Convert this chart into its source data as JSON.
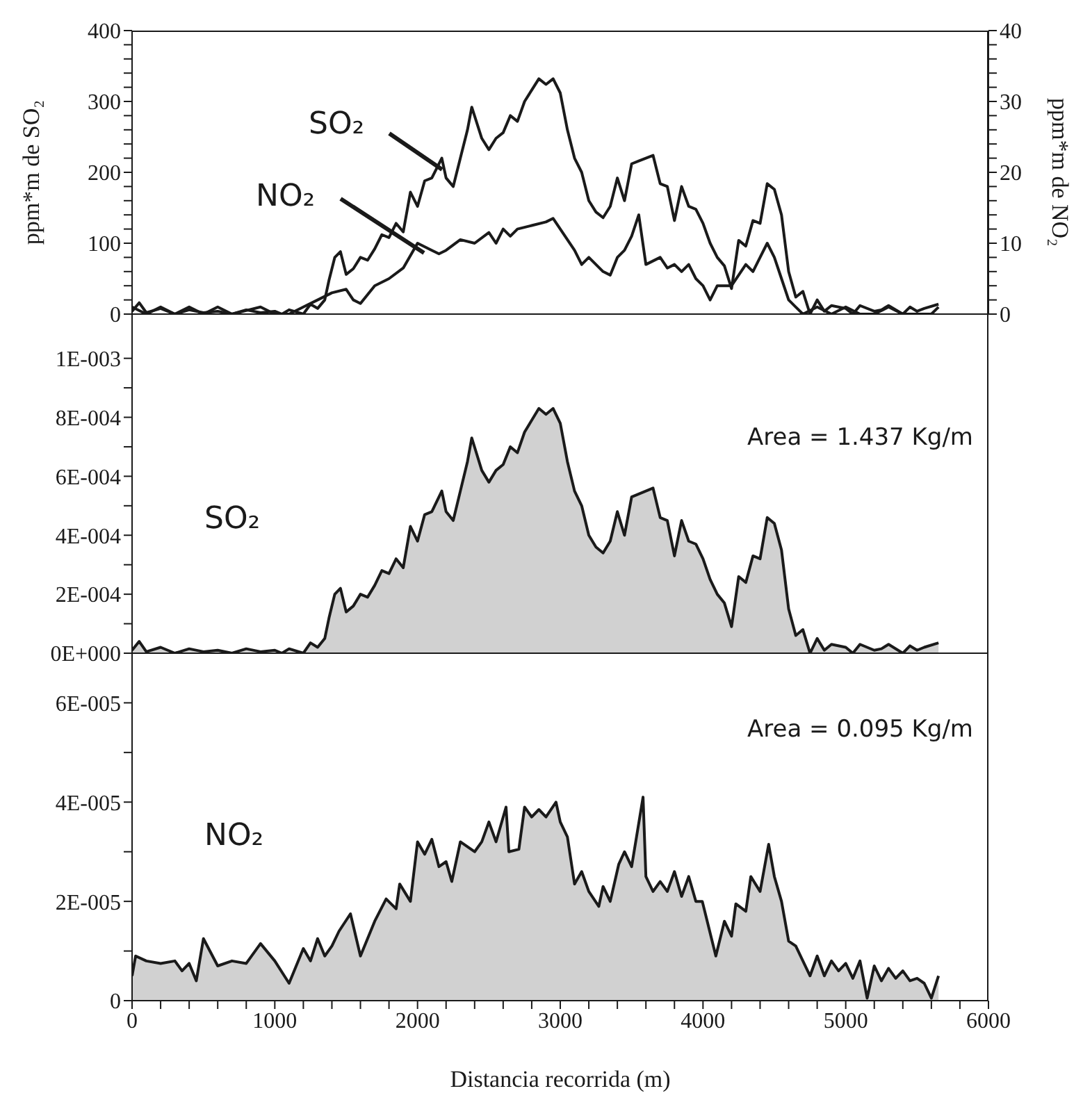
{
  "chart_data": [
    {
      "type": "line",
      "ylabel": "ppm*m de SO₂",
      "y2label": "ppm*m de NO₂",
      "xlim": [
        0,
        6000
      ],
      "ylim": [
        0,
        400
      ],
      "y2lim": [
        0,
        40
      ],
      "tick_labels": "y",
      "yticks": [
        0,
        {
          "value": 20,
          "label": null
        },
        {
          "value": 40,
          "label": null
        },
        {
          "value": 60,
          "label": null
        },
        {
          "value": 80,
          "label": null
        },
        100,
        {
          "value": 120,
          "label": null
        },
        {
          "value": 140,
          "label": null
        },
        {
          "value": 160,
          "label": null
        },
        {
          "value": 180,
          "label": null
        },
        200,
        {
          "value": 220,
          "label": null
        },
        {
          "value": 240,
          "label": null
        },
        {
          "value": 260,
          "label": null
        },
        {
          "value": 280,
          "label": null
        },
        300,
        {
          "value": 320,
          "label": null
        },
        {
          "value": 340,
          "label": null
        },
        {
          "value": 360,
          "label": null
        },
        {
          "value": 380,
          "label": null
        },
        400
      ],
      "y2ticks": [
        0,
        {
          "value": 2,
          "label": null
        },
        {
          "value": 4,
          "label": null
        },
        {
          "value": 6,
          "label": null
        },
        {
          "value": 8,
          "label": null
        },
        10,
        {
          "value": 12,
          "label": null
        },
        {
          "value": 14,
          "label": null
        },
        {
          "value": 16,
          "label": null
        },
        {
          "value": 18,
          "label": null
        },
        20,
        {
          "value": 22,
          "label": null
        },
        {
          "value": 24,
          "label": null
        },
        {
          "value": 26,
          "label": null
        },
        {
          "value": 28,
          "label": null
        },
        30,
        {
          "value": 32,
          "label": null
        },
        {
          "value": 34,
          "label": null
        },
        {
          "value": 36,
          "label": null
        },
        {
          "value": 38,
          "label": null
        },
        40
      ],
      "series": [
        {
          "name": "SO₂",
          "color": "#1a1a1a",
          "x": [
            0,
            50,
            100,
            200,
            300,
            400,
            500,
            600,
            700,
            800,
            900,
            1000,
            1050,
            1100,
            1200,
            1250,
            1300,
            1350,
            1380,
            1420,
            1460,
            1500,
            1550,
            1600,
            1650,
            1700,
            1750,
            1800,
            1850,
            1900,
            1950,
            2000,
            2050,
            2100,
            2170,
            2200,
            2250,
            2300,
            2350,
            2380,
            2450,
            2500,
            2550,
            2600,
            2650,
            2700,
            2750,
            2800,
            2850,
            2900,
            2950,
            3000,
            3050,
            3100,
            3150,
            3200,
            3250,
            3300,
            3350,
            3400,
            3450,
            3500,
            3550,
            3600,
            3650,
            3700,
            3750,
            3800,
            3850,
            3900,
            3950,
            4000,
            4050,
            4100,
            4150,
            4200,
            4250,
            4300,
            4350,
            4400,
            4450,
            4500,
            4550,
            4600,
            4650,
            4700,
            4750,
            4800,
            4850,
            4900,
            5000,
            5050,
            5100,
            5200,
            5250,
            5300,
            5400,
            5450,
            5500,
            5550,
            5650
          ],
          "values": [
            4,
            16,
            2,
            8,
            0,
            6,
            2,
            4,
            0,
            6,
            2,
            4,
            0,
            6,
            0,
            14,
            8,
            20,
            48,
            80,
            88,
            56,
            64,
            80,
            76,
            92,
            112,
            108,
            128,
            116,
            172,
            152,
            188,
            192,
            220,
            192,
            180,
            220,
            260,
            292,
            248,
            232,
            248,
            256,
            280,
            272,
            300,
            316,
            332,
            324,
            332,
            312,
            260,
            220,
            200,
            160,
            144,
            136,
            152,
            192,
            160,
            212,
            216,
            220,
            224,
            184,
            180,
            132,
            180,
            152,
            148,
            128,
            100,
            80,
            68,
            36,
            104,
            96,
            132,
            128,
            184,
            176,
            140,
            60,
            24,
            32,
            0,
            20,
            4,
            12,
            8,
            0,
            12,
            4,
            6,
            12,
            0,
            10,
            4,
            8,
            14
          ]
        },
        {
          "name": "NO₂",
          "color": "#1a1a1a",
          "axis": "y2",
          "x": [
            0,
            100,
            200,
            300,
            400,
            500,
            600,
            700,
            800,
            900,
            1000,
            1100,
            1200,
            1300,
            1400,
            1500,
            1550,
            1600,
            1700,
            1800,
            1900,
            2000,
            2100,
            2150,
            2200,
            2300,
            2400,
            2500,
            2550,
            2600,
            2650,
            2700,
            2800,
            2900,
            2950,
            3000,
            3100,
            3150,
            3200,
            3300,
            3350,
            3400,
            3450,
            3500,
            3550,
            3600,
            3700,
            3750,
            3800,
            3850,
            3900,
            3950,
            4000,
            4050,
            4100,
            4200,
            4250,
            4300,
            4350,
            4400,
            4450,
            4500,
            4550,
            4600,
            4650,
            4700,
            4800,
            4900,
            5000,
            5100,
            5200,
            5300,
            5400,
            5500,
            5600,
            5650
          ],
          "values": [
            1,
            0,
            1,
            0,
            1,
            0,
            1,
            0,
            0.5,
            1,
            0,
            0,
            1,
            2,
            3,
            3.5,
            2,
            1.5,
            4,
            5,
            6.5,
            10,
            9,
            8.5,
            9,
            10.5,
            10,
            11.5,
            10,
            12,
            11,
            12,
            12.5,
            13,
            13.5,
            12,
            9,
            7,
            8,
            6,
            5.5,
            8,
            9,
            11,
            14,
            7,
            8,
            6.5,
            7,
            6,
            7,
            5,
            4,
            2,
            4,
            4,
            5.5,
            7,
            6,
            8,
            10,
            8,
            5,
            2,
            1,
            0,
            1,
            0,
            1,
            0,
            0,
            1,
            0,
            0,
            0,
            1
          ]
        }
      ]
    },
    {
      "type": "area",
      "xlim": [
        0,
        6000
      ],
      "ylim": [
        0,
        0.00115
      ],
      "tick_labels": "y",
      "yticks": [
        {
          "value": 0,
          "label": "0E+000"
        },
        {
          "value": 0.0001,
          "label": null
        },
        {
          "value": 0.0002,
          "label": "2E-004"
        },
        {
          "value": 0.0003,
          "label": null
        },
        {
          "value": 0.0004,
          "label": "4E-004"
        },
        {
          "value": 0.0005,
          "label": null
        },
        {
          "value": 0.0006,
          "label": "6E-004"
        },
        {
          "value": 0.0007,
          "label": null
        },
        {
          "value": 0.0008,
          "label": "8E-004"
        },
        {
          "value": 0.0009,
          "label": null
        },
        {
          "value": 0.001,
          "label": "1E-003"
        }
      ],
      "annotations": [
        "Area = 1.437 Kg/m"
      ],
      "series": [
        {
          "name": "SO₂",
          "color": "#1a1a1a",
          "x": [
            0,
            50,
            100,
            200,
            300,
            400,
            500,
            600,
            700,
            800,
            900,
            1000,
            1050,
            1100,
            1200,
            1250,
            1300,
            1350,
            1380,
            1420,
            1460,
            1500,
            1550,
            1600,
            1650,
            1700,
            1750,
            1800,
            1850,
            1900,
            1950,
            2000,
            2050,
            2100,
            2170,
            2200,
            2250,
            2300,
            2350,
            2380,
            2450,
            2500,
            2550,
            2600,
            2650,
            2700,
            2750,
            2800,
            2850,
            2900,
            2950,
            3000,
            3050,
            3100,
            3150,
            3200,
            3250,
            3300,
            3350,
            3400,
            3450,
            3500,
            3550,
            3600,
            3650,
            3700,
            3750,
            3800,
            3850,
            3900,
            3950,
            4000,
            4050,
            4100,
            4150,
            4200,
            4250,
            4300,
            4350,
            4400,
            4450,
            4500,
            4550,
            4600,
            4650,
            4700,
            4750,
            4800,
            4850,
            4900,
            5000,
            5050,
            5100,
            5200,
            5250,
            5300,
            5400,
            5450,
            5500,
            5550,
            5650
          ],
          "values": [
            1e-05,
            4e-05,
            5e-06,
            2e-05,
            0,
            1.5e-05,
            5e-06,
            1e-05,
            0,
            1.5e-05,
            5e-06,
            1e-05,
            0,
            1.5e-05,
            0,
            3.5e-05,
            2e-05,
            5e-05,
            0.00012,
            0.0002,
            0.00022,
            0.00014,
            0.00016,
            0.0002,
            0.00019,
            0.00023,
            0.00028,
            0.00027,
            0.00032,
            0.00029,
            0.00043,
            0.00038,
            0.00047,
            0.00048,
            0.00055,
            0.00048,
            0.00045,
            0.00055,
            0.00065,
            0.00073,
            0.00062,
            0.00058,
            0.00062,
            0.00064,
            0.0007,
            0.00068,
            0.00075,
            0.00079,
            0.00083,
            0.00081,
            0.00083,
            0.00078,
            0.00065,
            0.00055,
            0.0005,
            0.0004,
            0.00036,
            0.00034,
            0.00038,
            0.00048,
            0.0004,
            0.00053,
            0.00054,
            0.00055,
            0.00056,
            0.00046,
            0.00045,
            0.00033,
            0.00045,
            0.00038,
            0.00037,
            0.00032,
            0.00025,
            0.0002,
            0.00017,
            9e-05,
            0.00026,
            0.00024,
            0.00033,
            0.00032,
            0.00046,
            0.00044,
            0.00035,
            0.00015,
            6e-05,
            8e-05,
            0,
            5e-05,
            1e-05,
            3e-05,
            2e-05,
            0,
            3e-05,
            1e-05,
            1.5e-05,
            3e-05,
            0,
            2.5e-05,
            1e-05,
            2e-05,
            3.5e-05
          ]
        }
      ]
    },
    {
      "type": "area",
      "xlabel": "Distancia recorrida (m)",
      "xlim": [
        0,
        6000
      ],
      "ylim": [
        0,
        7e-05
      ],
      "xticks": [
        0,
        {
          "value": 200,
          "label": null
        },
        {
          "value": 400,
          "label": null
        },
        {
          "value": 600,
          "label": null
        },
        {
          "value": 800,
          "label": null
        },
        1000,
        {
          "value": 1200,
          "label": null
        },
        {
          "value": 1400,
          "label": null
        },
        {
          "value": 1600,
          "label": null
        },
        {
          "value": 1800,
          "label": null
        },
        2000,
        {
          "value": 2200,
          "label": null
        },
        {
          "value": 2400,
          "label": null
        },
        {
          "value": 2600,
          "label": null
        },
        {
          "value": 2800,
          "label": null
        },
        3000,
        {
          "value": 3200,
          "label": null
        },
        {
          "value": 3400,
          "label": null
        },
        {
          "value": 3600,
          "label": null
        },
        {
          "value": 3800,
          "label": null
        },
        4000,
        {
          "value": 4200,
          "label": null
        },
        {
          "value": 4400,
          "label": null
        },
        {
          "value": 4600,
          "label": null
        },
        {
          "value": 4800,
          "label": null
        },
        5000,
        {
          "value": 5200,
          "label": null
        },
        {
          "value": 5400,
          "label": null
        },
        {
          "value": 5600,
          "label": null
        },
        {
          "value": 5800,
          "label": null
        },
        6000
      ],
      "yticks": [
        0,
        {
          "value": 1e-05,
          "label": null
        },
        {
          "value": 2e-05,
          "label": "2E-005"
        },
        {
          "value": 3e-05,
          "label": null
        },
        {
          "value": 4e-05,
          "label": "4E-005"
        },
        {
          "value": 5e-05,
          "label": null
        },
        {
          "value": 6e-05,
          "label": "6E-005"
        }
      ],
      "annotations": [
        "Area = 0.095 Kg/m"
      ],
      "series": [
        {
          "name": "NO₂",
          "color": "#1a1a1a",
          "x": [
            0,
            25,
            100,
            200,
            300,
            350,
            400,
            450,
            500,
            600,
            700,
            800,
            900,
            1000,
            1100,
            1200,
            1250,
            1300,
            1350,
            1400,
            1450,
            1530,
            1600,
            1700,
            1780,
            1850,
            1875,
            1950,
            2000,
            2050,
            2100,
            2150,
            2200,
            2240,
            2300,
            2400,
            2450,
            2500,
            2550,
            2620,
            2640,
            2710,
            2750,
            2800,
            2850,
            2900,
            2970,
            3000,
            3050,
            3100,
            3150,
            3200,
            3270,
            3300,
            3350,
            3410,
            3450,
            3500,
            3580,
            3600,
            3650,
            3700,
            3750,
            3800,
            3850,
            3900,
            3950,
            3995,
            4090,
            4150,
            4200,
            4230,
            4300,
            4335,
            4400,
            4460,
            4500,
            4550,
            4600,
            4650,
            4700,
            4750,
            4800,
            4850,
            4900,
            4950,
            5000,
            5050,
            5100,
            5150,
            5200,
            5250,
            5300,
            5350,
            5400,
            5450,
            5500,
            5550,
            5600,
            5650
          ],
          "values": [
            5e-06,
            9e-06,
            8e-06,
            7.5e-06,
            8e-06,
            6e-06,
            7.5e-06,
            4e-06,
            1.25e-05,
            7e-06,
            8e-06,
            7.5e-06,
            1.15e-05,
            8e-06,
            3.5e-06,
            1.05e-05,
            8e-06,
            1.25e-05,
            9e-06,
            1.1e-05,
            1.4e-05,
            1.75e-05,
            9e-06,
            1.6e-05,
            2.05e-05,
            1.85e-05,
            2.35e-05,
            2e-05,
            3.2e-05,
            2.95e-05,
            3.25e-05,
            2.7e-05,
            2.8e-05,
            2.4e-05,
            3.2e-05,
            3e-05,
            3.2e-05,
            3.6e-05,
            3.2e-05,
            3.9e-05,
            3e-05,
            3.05e-05,
            3.9e-05,
            3.7e-05,
            3.85e-05,
            3.7e-05,
            4e-05,
            3.6e-05,
            3.3e-05,
            2.35e-05,
            2.6e-05,
            2.2e-05,
            1.9e-05,
            2.3e-05,
            2e-05,
            2.75e-05,
            3e-05,
            2.7e-05,
            4.1e-05,
            2.5e-05,
            2.2e-05,
            2.4e-05,
            2.2e-05,
            2.6e-05,
            2.1e-05,
            2.5e-05,
            2e-05,
            2e-05,
            9e-06,
            1.6e-05,
            1.3e-05,
            1.95e-05,
            1.8e-05,
            2.5e-05,
            2.2e-05,
            3.15e-05,
            2.5e-05,
            2e-05,
            1.2e-05,
            1.1e-05,
            8e-06,
            5e-06,
            9e-06,
            5e-06,
            8e-06,
            6e-06,
            7.5e-06,
            4.5e-06,
            8e-06,
            5e-07,
            7e-06,
            4e-06,
            6.5e-06,
            4.5e-06,
            6e-06,
            4e-06,
            4.5e-06,
            3.5e-06,
            5e-07,
            5e-06
          ]
        }
      ]
    }
  ]
}
